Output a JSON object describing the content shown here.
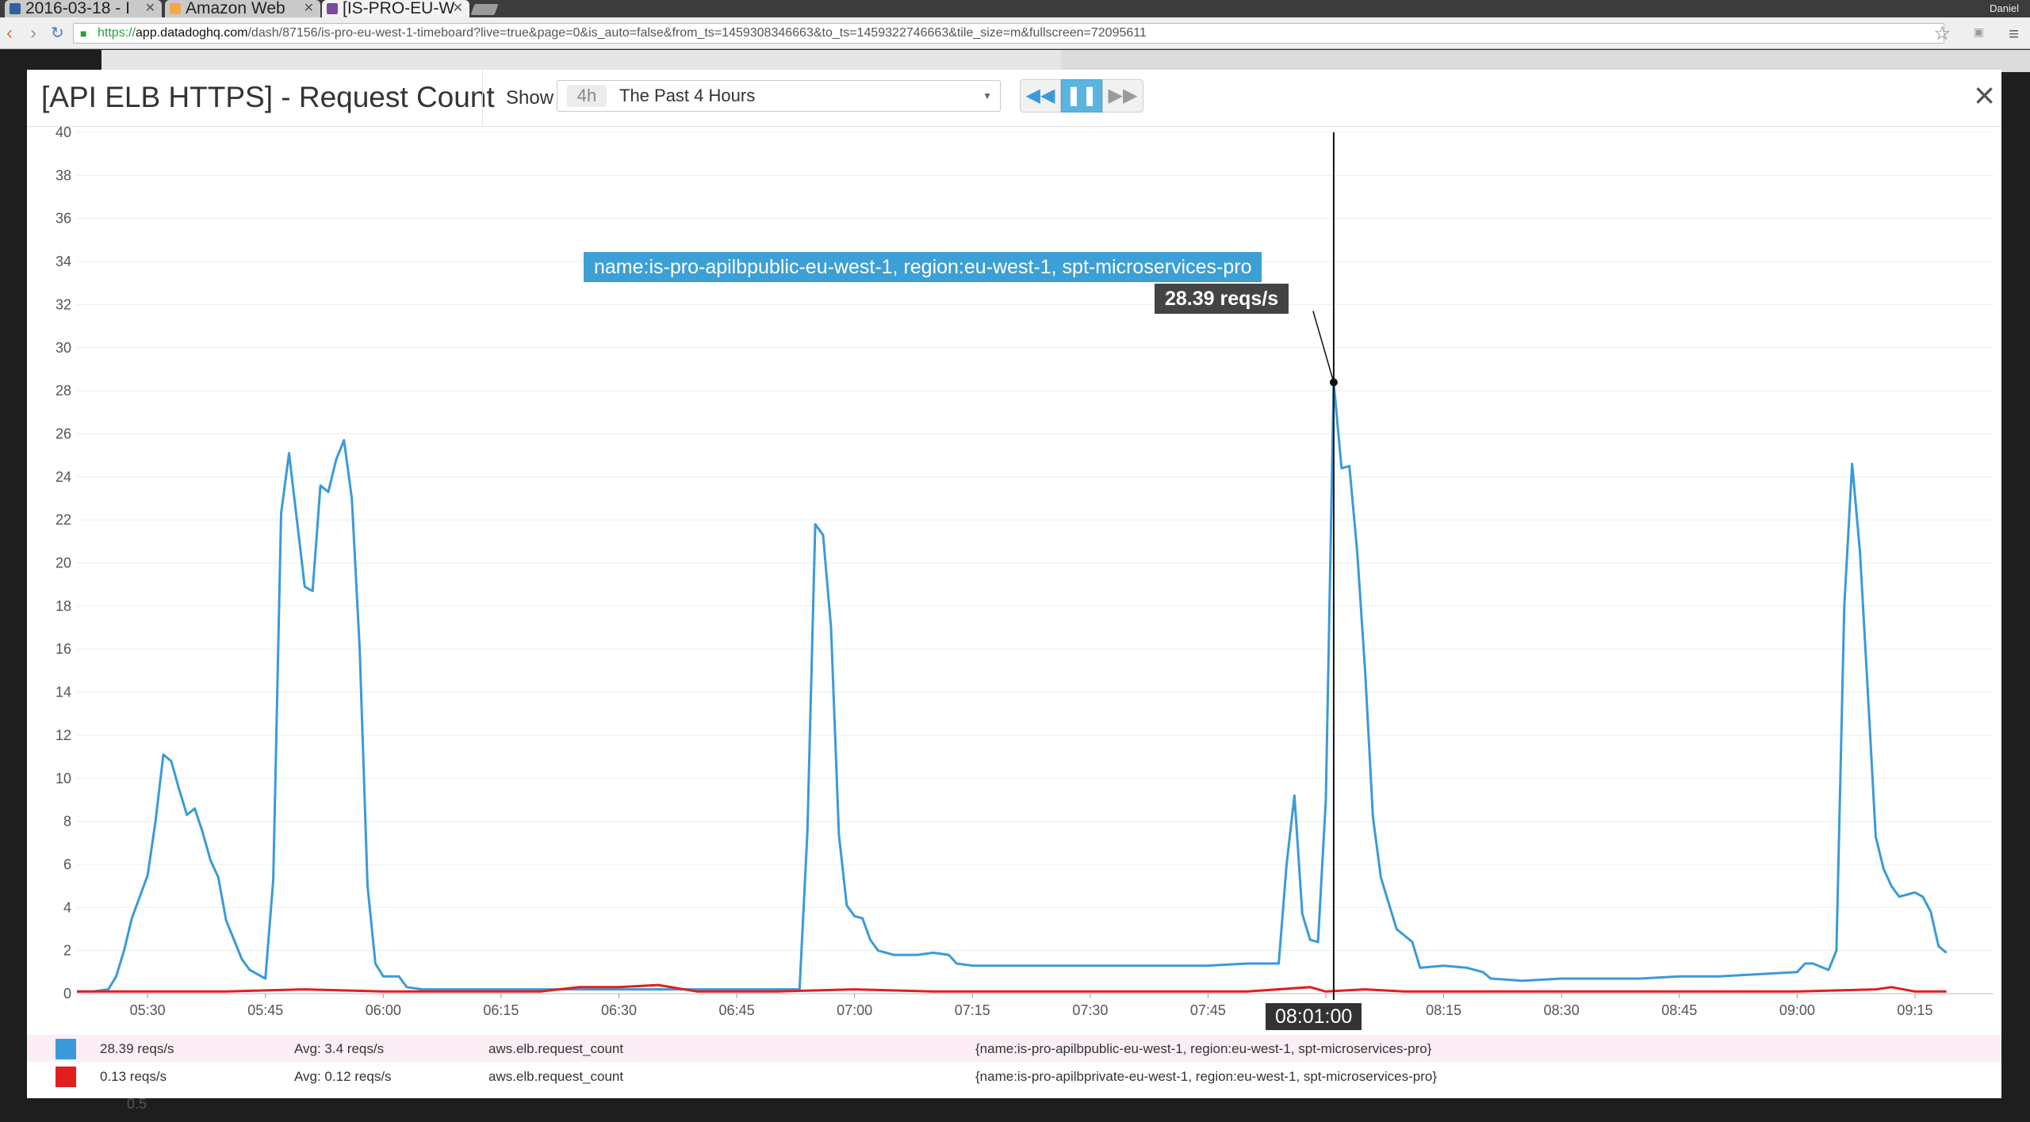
{
  "browser": {
    "tabs": [
      {
        "label": "2016-03-18 - I",
        "color": "#3060a0"
      },
      {
        "label": "Amazon Web",
        "color": "#f3a847"
      },
      {
        "label": "[IS-PRO-EU-W",
        "color": "#774aa4"
      }
    ],
    "user": "Daniel",
    "url_scheme": "https://",
    "url_host": "app.datadoghq.com",
    "url_path": "/dash/87156/is-pro-eu-west-1-timeboard?live=true&page=0&is_auto=false&from_ts=1459308346663&to_ts=1459322746663&tile_size=m&fullscreen=72095611"
  },
  "modal": {
    "title": "[API ELB HTTPS] - Request Count",
    "show_label": "Show",
    "time_badge": "4h",
    "time_label": "The Past 4 Hours",
    "close_icon": "×"
  },
  "tooltip": {
    "series_name": "name:is-pro-apilbpublic-eu-west-1, region:eu-west-1, spt-microservices-pro",
    "value": "28.39 reqs/s",
    "time": "08:01:00"
  },
  "legend": [
    {
      "color": "#3a9ad9",
      "current": "28.39 reqs/s",
      "avg": "Avg: 3.4 reqs/s",
      "metric": "aws.elb.request_count",
      "tags": "{name:is-pro-apilbpublic-eu-west-1, region:eu-west-1, spt-microservices-pro}"
    },
    {
      "color": "#e01e1e",
      "current": "0.13 reqs/s",
      "avg": "Avg: 0.12 reqs/s",
      "metric": "aws.elb.request_count",
      "tags": "{name:is-pro-apilbprivate-eu-west-1, region:eu-west-1, spt-microservices-pro}"
    }
  ],
  "background_label": "0.5",
  "chart_data": {
    "type": "line",
    "ylim": [
      0,
      40
    ],
    "yticks": [
      0,
      2,
      4,
      6,
      8,
      10,
      12,
      14,
      16,
      18,
      20,
      22,
      24,
      26,
      28,
      30,
      32,
      34,
      36,
      38,
      40
    ],
    "xlim": [
      "05:21",
      "09:25"
    ],
    "xticks": [
      "05:30",
      "05:45",
      "06:00",
      "06:15",
      "06:30",
      "06:45",
      "07:00",
      "07:15",
      "07:30",
      "07:45",
      "08:00",
      "08:15",
      "08:30",
      "08:45",
      "09:00",
      "09:15"
    ],
    "hover_time": "08:01",
    "hover_value": 28.39,
    "series": [
      {
        "color": "#3a9ad9",
        "points": [
          [
            "05:21",
            0.1
          ],
          [
            "05:23",
            0.1
          ],
          [
            "05:25",
            0.2
          ],
          [
            "05:26",
            0.8
          ],
          [
            "05:27",
            2.0
          ],
          [
            "05:28",
            3.5
          ],
          [
            "05:30",
            5.5
          ],
          [
            "05:31",
            8.0
          ],
          [
            "05:32",
            11.1
          ],
          [
            "05:33",
            10.8
          ],
          [
            "05:34",
            9.5
          ],
          [
            "05:35",
            8.3
          ],
          [
            "05:36",
            8.6
          ],
          [
            "05:37",
            7.5
          ],
          [
            "05:38",
            6.2
          ],
          [
            "05:39",
            5.4
          ],
          [
            "05:40",
            3.4
          ],
          [
            "05:41",
            2.5
          ],
          [
            "05:42",
            1.6
          ],
          [
            "05:43",
            1.1
          ],
          [
            "05:45",
            0.7
          ],
          [
            "05:46",
            5.3
          ],
          [
            "05:47",
            22.3
          ],
          [
            "05:48",
            25.1
          ],
          [
            "05:49",
            22.0
          ],
          [
            "05:50",
            18.9
          ],
          [
            "05:51",
            18.7
          ],
          [
            "05:52",
            23.6
          ],
          [
            "05:53",
            23.3
          ],
          [
            "05:54",
            24.8
          ],
          [
            "05:55",
            25.7
          ],
          [
            "05:56",
            23.0
          ],
          [
            "05:57",
            16.0
          ],
          [
            "05:58",
            5.0
          ],
          [
            "05:59",
            1.4
          ],
          [
            "06:00",
            0.8
          ],
          [
            "06:02",
            0.8
          ],
          [
            "06:03",
            0.3
          ],
          [
            "06:05",
            0.2
          ],
          [
            "06:15",
            0.2
          ],
          [
            "06:30",
            0.2
          ],
          [
            "06:45",
            0.2
          ],
          [
            "06:53",
            0.2
          ],
          [
            "06:54",
            7.5
          ],
          [
            "06:55",
            21.8
          ],
          [
            "06:56",
            21.3
          ],
          [
            "06:57",
            17.0
          ],
          [
            "06:58",
            7.4
          ],
          [
            "06:59",
            4.1
          ],
          [
            "07:00",
            3.6
          ],
          [
            "07:01",
            3.5
          ],
          [
            "07:02",
            2.5
          ],
          [
            "07:03",
            2.0
          ],
          [
            "07:05",
            1.8
          ],
          [
            "07:08",
            1.8
          ],
          [
            "07:10",
            1.9
          ],
          [
            "07:12",
            1.8
          ],
          [
            "07:13",
            1.4
          ],
          [
            "07:15",
            1.3
          ],
          [
            "07:20",
            1.3
          ],
          [
            "07:25",
            1.3
          ],
          [
            "07:30",
            1.3
          ],
          [
            "07:35",
            1.3
          ],
          [
            "07:40",
            1.3
          ],
          [
            "07:45",
            1.3
          ],
          [
            "07:50",
            1.4
          ],
          [
            "07:54",
            1.4
          ],
          [
            "07:55",
            6.0
          ],
          [
            "07:56",
            9.2
          ],
          [
            "07:57",
            3.7
          ],
          [
            "07:58",
            2.5
          ],
          [
            "07:59",
            2.4
          ],
          [
            "08:00",
            9.0
          ],
          [
            "08:01",
            28.39
          ],
          [
            "08:02",
            24.4
          ],
          [
            "08:03",
            24.5
          ],
          [
            "08:04",
            20.5
          ],
          [
            "08:05",
            15.0
          ],
          [
            "08:06",
            8.2
          ],
          [
            "08:07",
            5.4
          ],
          [
            "08:08",
            4.2
          ],
          [
            "08:09",
            3.0
          ],
          [
            "08:11",
            2.4
          ],
          [
            "08:12",
            1.2
          ],
          [
            "08:15",
            1.3
          ],
          [
            "08:18",
            1.2
          ],
          [
            "08:20",
            1.0
          ],
          [
            "08:21",
            0.7
          ],
          [
            "08:25",
            0.6
          ],
          [
            "08:30",
            0.7
          ],
          [
            "08:35",
            0.7
          ],
          [
            "08:40",
            0.7
          ],
          [
            "08:45",
            0.8
          ],
          [
            "08:50",
            0.8
          ],
          [
            "08:55",
            0.9
          ],
          [
            "09:00",
            1.0
          ],
          [
            "09:01",
            1.4
          ],
          [
            "09:02",
            1.4
          ],
          [
            "09:04",
            1.1
          ],
          [
            "09:05",
            2.0
          ],
          [
            "09:06",
            18.0
          ],
          [
            "09:07",
            24.6
          ],
          [
            "09:08",
            20.5
          ],
          [
            "09:09",
            14.0
          ],
          [
            "09:10",
            7.3
          ],
          [
            "09:11",
            5.8
          ],
          [
            "09:12",
            5.0
          ],
          [
            "09:13",
            4.5
          ],
          [
            "09:14",
            4.6
          ],
          [
            "09:15",
            4.7
          ],
          [
            "09:16",
            4.5
          ],
          [
            "09:17",
            3.8
          ],
          [
            "09:18",
            2.2
          ],
          [
            "09:19",
            1.9
          ]
        ]
      },
      {
        "color": "#e01e1e",
        "points": [
          [
            "05:21",
            0.1
          ],
          [
            "05:30",
            0.1
          ],
          [
            "05:40",
            0.1
          ],
          [
            "05:50",
            0.2
          ],
          [
            "06:00",
            0.1
          ],
          [
            "06:10",
            0.1
          ],
          [
            "06:20",
            0.1
          ],
          [
            "06:25",
            0.3
          ],
          [
            "06:30",
            0.3
          ],
          [
            "06:35",
            0.4
          ],
          [
            "06:40",
            0.1
          ],
          [
            "06:50",
            0.1
          ],
          [
            "07:00",
            0.2
          ],
          [
            "07:10",
            0.1
          ],
          [
            "07:20",
            0.1
          ],
          [
            "07:30",
            0.1
          ],
          [
            "07:40",
            0.1
          ],
          [
            "07:50",
            0.1
          ],
          [
            "07:58",
            0.3
          ],
          [
            "08:00",
            0.1
          ],
          [
            "08:05",
            0.2
          ],
          [
            "08:10",
            0.1
          ],
          [
            "08:20",
            0.1
          ],
          [
            "08:30",
            0.1
          ],
          [
            "08:40",
            0.1
          ],
          [
            "08:50",
            0.1
          ],
          [
            "09:00",
            0.1
          ],
          [
            "09:10",
            0.2
          ],
          [
            "09:12",
            0.3
          ],
          [
            "09:15",
            0.1
          ],
          [
            "09:19",
            0.1
          ]
        ]
      }
    ]
  }
}
